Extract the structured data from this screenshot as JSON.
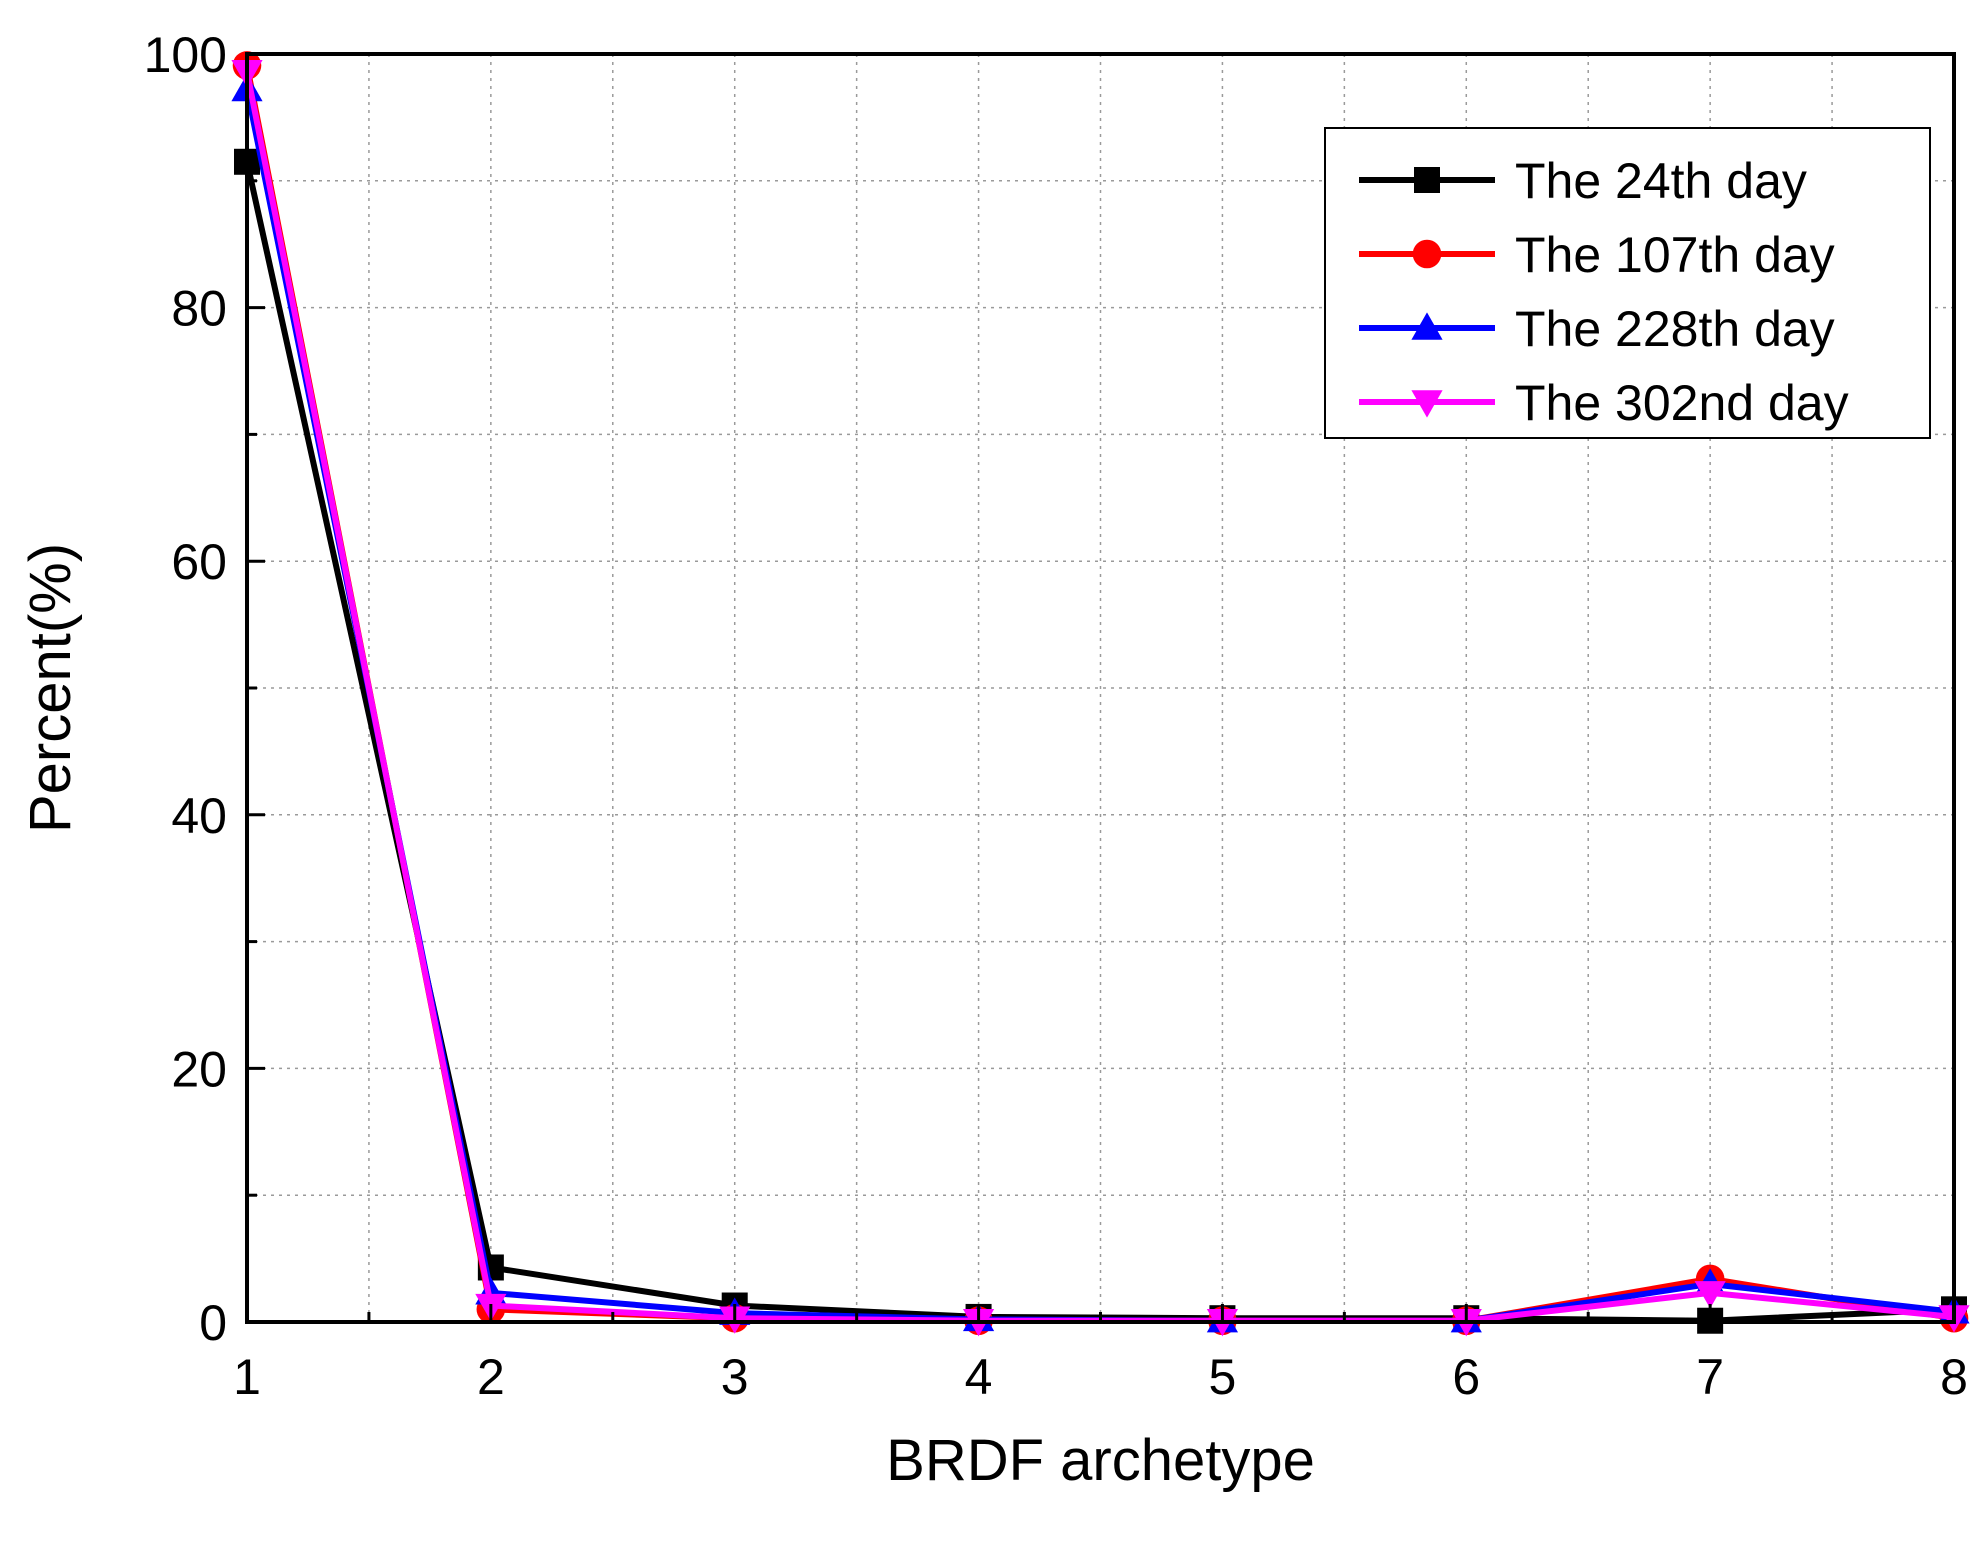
{
  "chart_data": {
    "type": "line",
    "xlabel": "BRDF archetype",
    "ylabel": "Percent(%)",
    "xlim": [
      1,
      8
    ],
    "ylim": [
      0,
      100
    ],
    "x": [
      1,
      2,
      3,
      4,
      5,
      6,
      7,
      8
    ],
    "x_ticks": [
      "1",
      "2",
      "3",
      "4",
      "5",
      "6",
      "7",
      "8"
    ],
    "y_ticks": [
      "0",
      "20",
      "40",
      "60",
      "80",
      "100"
    ],
    "grid": true,
    "legend_position": "top-right",
    "series": [
      {
        "name": "The 24th day",
        "color": "#000000",
        "marker": "square",
        "values": [
          91.5,
          4.3,
          1.3,
          0.4,
          0.3,
          0.3,
          0.1,
          1.0
        ]
      },
      {
        "name": "The 107th day",
        "color": "#ff0000",
        "marker": "circle",
        "values": [
          99.1,
          1.0,
          0.3,
          0.1,
          0.1,
          0.1,
          3.4,
          0.3
        ]
      },
      {
        "name": "The 228th day",
        "color": "#0000ff",
        "marker": "triangle-up",
        "values": [
          97.2,
          2.3,
          0.7,
          0.2,
          0.1,
          0.1,
          3.0,
          0.8
        ]
      },
      {
        "name": "The 302nd day",
        "color": "#ff00ff",
        "marker": "triangle-down",
        "values": [
          98.6,
          1.3,
          0.3,
          0.1,
          0.1,
          0.1,
          2.3,
          0.4
        ]
      }
    ]
  }
}
